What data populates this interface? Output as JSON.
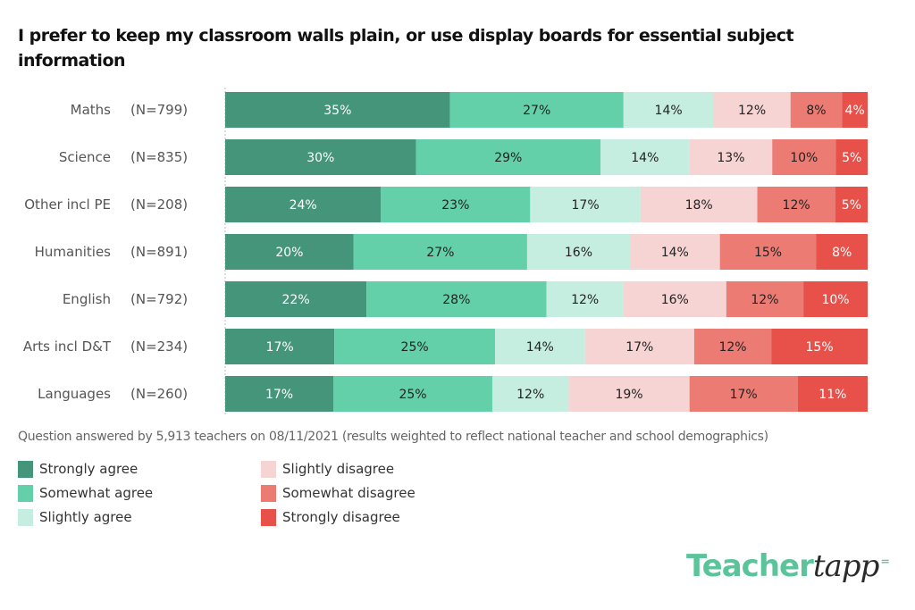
{
  "chart_data": {
    "type": "bar",
    "orientation": "horizontal",
    "stacked": true,
    "normalized": true,
    "title": "I prefer to keep my classroom walls plain, or use display boards for essential subject information",
    "xlabel": "",
    "ylabel": "",
    "xlim": [
      0,
      100
    ],
    "grid": false,
    "legend_position": "bottom-left",
    "categories": [
      "Maths",
      "Science",
      "Other incl PE",
      "Humanities",
      "English",
      "Arts incl D&T",
      "Languages"
    ],
    "sample_sizes": [
      "(N=799)",
      "(N=835)",
      "(N=208)",
      "(N=891)",
      "(N=792)",
      "(N=234)",
      "(N=260)"
    ],
    "series": [
      {
        "name": "Strongly agree",
        "color": "#45957a",
        "text_color": "#ffffff",
        "values": [
          35,
          30,
          24,
          20,
          22,
          17,
          17
        ]
      },
      {
        "name": "Somewhat agree",
        "color": "#63d0aa",
        "text_color": "#222222",
        "values": [
          27,
          29,
          23,
          27,
          28,
          25,
          25
        ]
      },
      {
        "name": "Slightly agree",
        "color": "#c6eee0",
        "text_color": "#222222",
        "values": [
          14,
          14,
          17,
          16,
          12,
          14,
          12
        ]
      },
      {
        "name": "Slightly disagree",
        "color": "#f5d4d3",
        "text_color": "#222222",
        "values": [
          12,
          13,
          18,
          14,
          16,
          17,
          19
        ]
      },
      {
        "name": "Somewhat disagree",
        "color": "#ec7b74",
        "text_color": "#222222",
        "values": [
          8,
          10,
          12,
          15,
          12,
          12,
          17
        ]
      },
      {
        "name": "Strongly disagree",
        "color": "#e8504a",
        "text_color": "#ffffff",
        "values": [
          4,
          5,
          5,
          8,
          10,
          15,
          11
        ]
      }
    ],
    "value_suffix": "%",
    "footnote": "Question answered by 5,913 teachers on 08/11/2021 (results weighted to reflect national teacher and school demographics)"
  },
  "brand": {
    "logo_part1": "Teacher",
    "logo_part2": "tapp",
    "logo_spark": "⁼",
    "accent": "#5cc49a"
  }
}
